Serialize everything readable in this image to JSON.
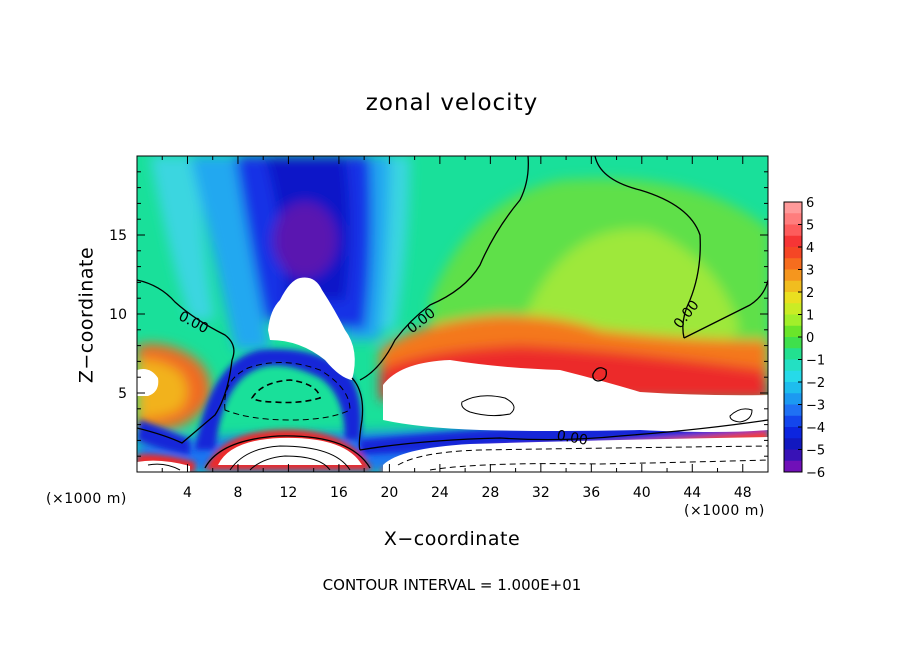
{
  "chart_data": {
    "type": "heatmap",
    "title": "zonal velocity",
    "xlabel": "X−coordinate",
    "ylabel": "Z−coordinate",
    "x_unit_left": "(×1000 m)",
    "x_unit_right": "(×1000 m)",
    "xlim": [
      0,
      50
    ],
    "ylim": [
      0,
      20
    ],
    "x_ticks": [
      "4",
      "8",
      "12",
      "16",
      "20",
      "24",
      "28",
      "32",
      "36",
      "40",
      "44",
      "48"
    ],
    "x_tick_values": [
      4,
      8,
      12,
      16,
      20,
      24,
      28,
      32,
      36,
      40,
      44,
      48
    ],
    "y_ticks": [
      "5",
      "10",
      "15"
    ],
    "y_tick_values": [
      5,
      10,
      15
    ],
    "colorbar": {
      "labels": [
        "6",
        "5",
        "4",
        "3",
        "2",
        "1",
        "0",
        "−1",
        "−2",
        "−3",
        "−4",
        "−5",
        "−6"
      ],
      "values": [
        6,
        5,
        4,
        3,
        2,
        1,
        0,
        -1,
        -2,
        -3,
        -4,
        -5,
        -6
      ],
      "range": [
        -6,
        6
      ],
      "placement": "right",
      "above_max_color": "#ffffff",
      "below_min_color": "#ffffff"
    },
    "contour_labels": [
      {
        "text": "0.00",
        "x": 4.5,
        "z": 9.5
      },
      {
        "text": "0.00",
        "x": 22.5,
        "z": 9.6
      },
      {
        "text": "0.00",
        "x": 43.5,
        "z": 10.0
      },
      {
        "text": "0.00",
        "x": 34.5,
        "z": 2.2
      }
    ],
    "contour_interval_text": "CONTOUR INTERVAL = 1.000E+01",
    "grid": false
  }
}
